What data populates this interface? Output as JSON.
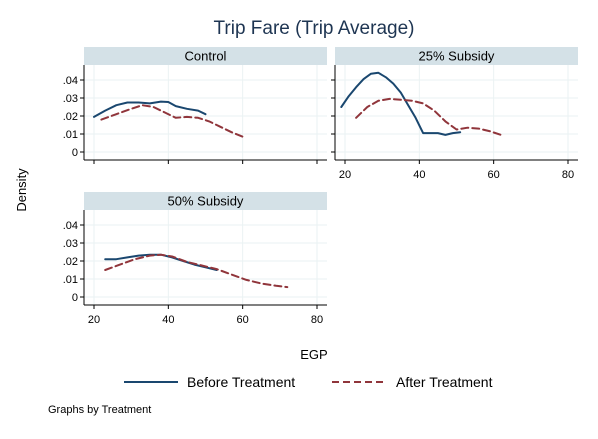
{
  "chart_data": {
    "type": "line",
    "title": "Trip Fare (Trip Average)",
    "xlabel": "EGP",
    "ylabel": "Density",
    "xlim": [
      20,
      80
    ],
    "ylim": [
      0,
      0.045
    ],
    "x_ticks": [
      "20",
      "40",
      "60",
      "80"
    ],
    "y_ticks": [
      "0",
      ".01",
      ".02",
      ".03",
      ".04"
    ],
    "note": "Graphs by Treatment",
    "colors": {
      "before": "#1a476f",
      "after": "#90353b",
      "header": "#d4e1e7",
      "grid": "#eaf2f3"
    },
    "legend": [
      {
        "name": "Before Treatment",
        "style": "solid"
      },
      {
        "name": "After Treatment",
        "style": "dashed"
      }
    ],
    "panels": [
      {
        "label": "Control",
        "series": [
          {
            "name": "Before Treatment",
            "x": [
              20,
              23,
              26,
              29,
              32,
              35,
              38,
              40,
              42,
              45,
              48,
              50
            ],
            "y": [
              0.0195,
              0.023,
              0.026,
              0.0275,
              0.0275,
              0.027,
              0.028,
              0.0278,
              0.0255,
              0.024,
              0.023,
              0.021
            ]
          },
          {
            "name": "After Treatment",
            "x": [
              22,
              26,
              30,
              33,
              36,
              39,
              42,
              45,
              48,
              51,
              54,
              57,
              60
            ],
            "y": [
              0.018,
              0.021,
              0.024,
              0.026,
              0.025,
              0.022,
              0.019,
              0.0195,
              0.019,
              0.017,
              0.014,
              0.011,
              0.0085
            ]
          }
        ]
      },
      {
        "label": "25% Subsidy",
        "series": [
          {
            "name": "Before Treatment",
            "x": [
              19,
              21,
              23,
              25,
              27,
              29,
              31,
              33,
              35,
              37,
              39,
              41,
              43,
              45,
              47,
              49,
              51
            ],
            "y": [
              0.025,
              0.031,
              0.036,
              0.0405,
              0.0435,
              0.044,
              0.0415,
              0.038,
              0.033,
              0.026,
              0.019,
              0.0105,
              0.0105,
              0.0105,
              0.0095,
              0.0105,
              0.011
            ]
          },
          {
            "name": "After Treatment",
            "x": [
              23,
              26,
              29,
              32,
              35,
              38,
              41,
              44,
              47,
              50,
              53,
              56,
              59,
              62
            ],
            "y": [
              0.019,
              0.025,
              0.0285,
              0.0295,
              0.029,
              0.0285,
              0.027,
              0.023,
              0.017,
              0.0125,
              0.0135,
              0.013,
              0.0115,
              0.0095
            ]
          }
        ]
      },
      {
        "label": "50% Subsidy",
        "series": [
          {
            "name": "Before Treatment",
            "x": [
              23,
              26,
              29,
              32,
              35,
              38,
              41,
              44,
              47,
              50,
              53
            ],
            "y": [
              0.021,
              0.021,
              0.022,
              0.023,
              0.0235,
              0.0235,
              0.022,
              0.02,
              0.018,
              0.0165,
              0.015
            ]
          },
          {
            "name": "After Treatment",
            "x": [
              23,
              27,
              31,
              35,
              38,
              41,
              45,
              49,
              53,
              57,
              61,
              65,
              69,
              72
            ],
            "y": [
              0.015,
              0.018,
              0.021,
              0.023,
              0.0235,
              0.0225,
              0.0195,
              0.0175,
              0.0155,
              0.0125,
              0.0095,
              0.0075,
              0.0062,
              0.0055
            ]
          }
        ]
      }
    ]
  }
}
